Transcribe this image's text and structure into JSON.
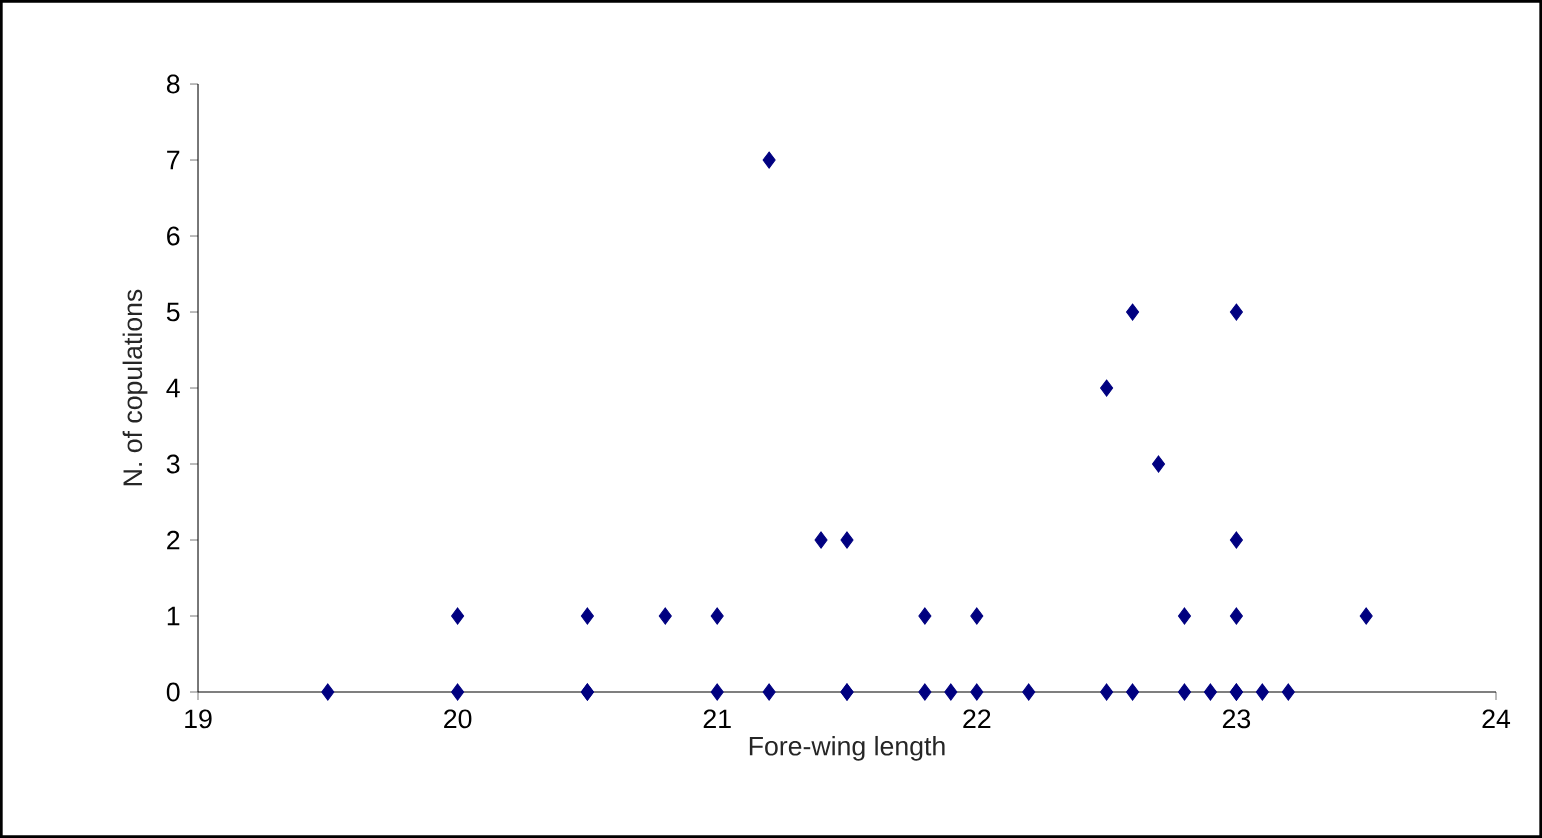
{
  "chart_data": {
    "type": "scatter",
    "xlabel": "Fore-wing length",
    "ylabel": "N. of copulations",
    "x": [
      19.5,
      20.0,
      20.5,
      20.5,
      21.0,
      21.2,
      21.5,
      21.5,
      21.8,
      21.9,
      22.0,
      22.2,
      22.5,
      22.6,
      22.8,
      22.9,
      23.0,
      23.0,
      23.1,
      23.2,
      20.0,
      20.5,
      20.8,
      21.0,
      21.8,
      22.0,
      22.8,
      23.0,
      23.5,
      21.4,
      21.5,
      23.0,
      22.7,
      22.5,
      22.6,
      23.0,
      21.2
    ],
    "values": [
      0,
      0,
      0,
      0,
      0,
      0,
      0,
      0,
      0,
      0,
      0,
      0,
      0,
      0,
      0,
      0,
      0,
      0,
      0,
      0,
      1,
      1,
      1,
      1,
      1,
      1,
      1,
      1,
      1,
      2,
      2,
      2,
      3,
      4,
      5,
      5,
      7
    ],
    "color": "#000080",
    "marker": "diamond",
    "xlim": [
      19,
      24
    ],
    "ylim": [
      0,
      8
    ],
    "xticks": [
      19,
      20,
      21,
      22,
      23,
      24
    ],
    "yticks": [
      0,
      1,
      2,
      3,
      4,
      5,
      6,
      7,
      8
    ]
  }
}
